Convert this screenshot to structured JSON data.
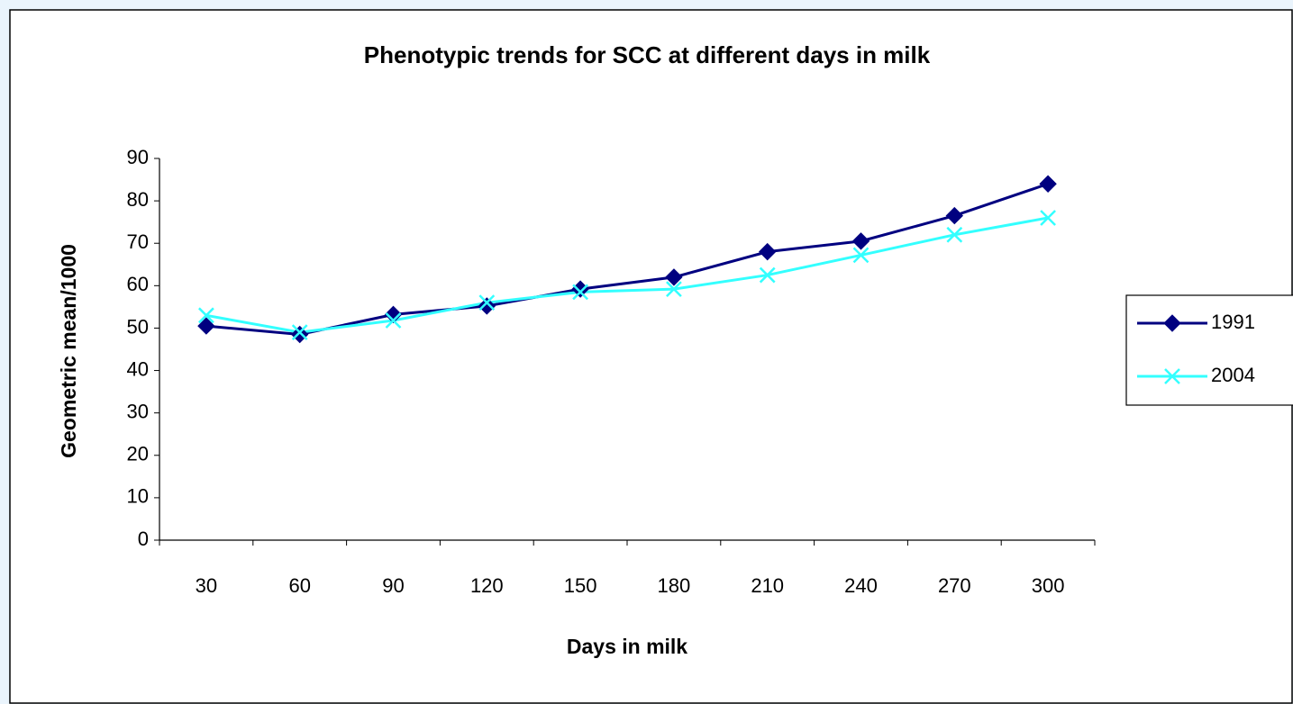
{
  "chart_data": {
    "type": "line",
    "title": "Phenotypic trends for SCC at different days in milk",
    "x_label": "Days in milk",
    "y_label": "Geometric mean/1000",
    "categories": [
      "30",
      "60",
      "90",
      "120",
      "150",
      "180",
      "210",
      "240",
      "270",
      "300"
    ],
    "series": [
      {
        "name": "1991",
        "color": "#000080",
        "marker": "diamond",
        "values": [
          50.5,
          48.5,
          53.2,
          55.2,
          59.2,
          62,
          68,
          70.5,
          76.5,
          84
        ]
      },
      {
        "name": "2004",
        "color": "#33ffff",
        "marker": "x",
        "values": [
          53,
          49,
          51.8,
          56,
          58.5,
          59.2,
          62.5,
          67.2,
          72,
          76
        ]
      }
    ],
    "ylim": [
      0,
      90
    ],
    "yticks": [
      0,
      10,
      20,
      30,
      40,
      50,
      60,
      70,
      80,
      90
    ],
    "grid": false,
    "legend": "right"
  }
}
